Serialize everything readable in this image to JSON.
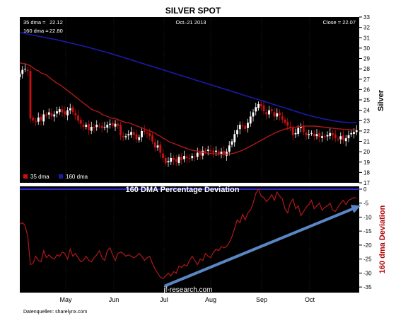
{
  "page": {
    "title": "SILVER SPOT",
    "date": "Oct–21 2013",
    "watermark": "jf-research.com",
    "source": "Datenquellen: sharelynx.com",
    "months": [
      "May",
      "Jun",
      "Jul",
      "Aug",
      "Sep",
      "Oct"
    ]
  },
  "colors": {
    "background": "#000000",
    "candle_up": "#ffffff",
    "candle_down": "#cc1010",
    "ma35": "#b01818",
    "ma160": "#1a1aa8",
    "deviation": "#b01818",
    "trend_arrow": "#5b86c4",
    "zero_line": "#2b2bd0",
    "axis_text": "#000000",
    "ylabel_upper": "#000000",
    "ylabel_lower": "#b00000"
  },
  "chart_data": [
    {
      "type": "candlestick",
      "title": "SILVER SPOT",
      "ylabel": "Silver",
      "xlim_days": [
        0,
        128
      ],
      "ylim": [
        17,
        33
      ],
      "yticks": [
        17,
        18,
        19,
        20,
        21,
        22,
        23,
        24,
        25,
        26,
        27,
        28,
        29,
        30,
        31,
        32,
        33
      ],
      "info": {
        "ma35_label": "35 dma =",
        "ma35_value": "22.12",
        "ma160_label": "160 dma =",
        "ma160_value": "22.80",
        "close_text": "Close = 22.07"
      },
      "legend": [
        {
          "name": "35 dma"
        },
        {
          "name": "160 dma"
        }
      ],
      "close": [
        27.5,
        27.9,
        28.0,
        27.8,
        23.2,
        23.0,
        22.9,
        23.3,
        23.0,
        23.6,
        23.5,
        23.8,
        23.4,
        23.6,
        23.9,
        24.1,
        23.8,
        23.6,
        24.0,
        24.2,
        23.8,
        23.5,
        23.0,
        22.7,
        22.4,
        22.6,
        22.1,
        22.4,
        22.3,
        22.6,
        22.5,
        22.3,
        22.4,
        22.6,
        22.7,
        22.5,
        22.7,
        22.5,
        21.6,
        21.4,
        21.5,
        21.7,
        21.9,
        21.6,
        21.2,
        21.4,
        22.0,
        21.9,
        21.8,
        21.5,
        21.0,
        20.4,
        20.6,
        19.9,
        19.4,
        18.9,
        19.1,
        19.4,
        19.2,
        19.0,
        19.5,
        19.2,
        19.6,
        19.4,
        19.3,
        19.6,
        19.5,
        19.9,
        19.7,
        20.1,
        20.0,
        20.2,
        20.1,
        19.9,
        20.1,
        19.8,
        20.0,
        19.7,
        20.0,
        20.6,
        21.0,
        21.7,
        22.1,
        22.6,
        22.5,
        22.2,
        22.8,
        23.4,
        23.8,
        24.3,
        24.6,
        24.4,
        23.9,
        23.6,
        24.0,
        23.9,
        23.4,
        23.7,
        23.5,
        23.1,
        22.8,
        22.5,
        22.3,
        21.6,
        21.8,
        22.3,
        22.4,
        21.9,
        21.6,
        21.7,
        21.8,
        21.5,
        21.7,
        21.4,
        21.5,
        21.4,
        21.6,
        21.8,
        21.6,
        21.3,
        21.2,
        21.5,
        21.1,
        21.3,
        21.6,
        21.8,
        21.9,
        22.07
      ],
      "ma35": [
        28.6,
        28.5,
        28.5,
        28.4,
        28.3,
        28.1,
        27.9,
        27.8,
        27.6,
        27.5,
        27.4,
        27.2,
        27.0,
        26.8,
        26.6,
        26.5,
        26.3,
        26.1,
        25.9,
        25.7,
        25.5,
        25.3,
        25.1,
        24.9,
        24.7,
        24.5,
        24.3,
        24.1,
        24.0,
        23.9,
        23.8,
        23.6,
        23.5,
        23.4,
        23.3,
        23.2,
        23.2,
        23.1,
        23.0,
        22.9,
        22.8,
        22.8,
        22.7,
        22.6,
        22.5,
        22.4,
        22.3,
        22.2,
        22.1,
        22.0,
        21.9,
        21.8,
        21.6,
        21.5,
        21.3,
        21.2,
        21.0,
        20.9,
        20.8,
        20.7,
        20.6,
        20.5,
        20.4,
        20.3,
        20.2,
        20.15,
        20.1,
        20.05,
        20.0,
        19.95,
        19.9,
        19.85,
        19.82,
        19.8,
        19.78,
        19.76,
        19.75,
        19.75,
        19.76,
        19.78,
        19.82,
        19.88,
        19.96,
        20.05,
        20.15,
        20.27,
        20.4,
        20.54,
        20.68,
        20.82,
        20.96,
        21.1,
        21.24,
        21.38,
        21.52,
        21.65,
        21.78,
        21.9,
        22.0,
        22.1,
        22.18,
        22.24,
        22.3,
        22.34,
        22.38,
        22.42,
        22.45,
        22.47,
        22.48,
        22.48,
        22.48,
        22.47,
        22.45,
        22.42,
        22.39,
        22.36,
        22.33,
        22.3,
        22.27,
        22.24,
        22.21,
        22.19,
        22.17,
        22.15,
        22.14,
        22.13,
        22.12,
        22.12
      ],
      "ma160": [
        31.5,
        31.45,
        31.4,
        31.35,
        31.3,
        31.25,
        31.2,
        31.15,
        31.1,
        31.05,
        31.0,
        30.95,
        30.9,
        30.85,
        30.8,
        30.74,
        30.68,
        30.62,
        30.56,
        30.5,
        30.44,
        30.38,
        30.32,
        30.26,
        30.2,
        30.13,
        30.06,
        29.99,
        29.92,
        29.85,
        29.78,
        29.71,
        29.64,
        29.57,
        29.5,
        29.42,
        29.34,
        29.26,
        29.18,
        29.1,
        29.02,
        28.94,
        28.86,
        28.78,
        28.7,
        28.62,
        28.54,
        28.46,
        28.38,
        28.3,
        28.22,
        28.14,
        28.06,
        27.98,
        27.9,
        27.82,
        27.74,
        27.66,
        27.58,
        27.5,
        27.42,
        27.34,
        27.26,
        27.18,
        27.1,
        27.02,
        26.94,
        26.86,
        26.78,
        26.7,
        26.62,
        26.54,
        26.46,
        26.38,
        26.3,
        26.22,
        26.14,
        26.06,
        25.98,
        25.9,
        25.82,
        25.74,
        25.66,
        25.58,
        25.5,
        25.42,
        25.34,
        25.26,
        25.18,
        25.1,
        25.02,
        24.94,
        24.86,
        24.78,
        24.7,
        24.62,
        24.54,
        24.46,
        24.38,
        24.3,
        24.22,
        24.14,
        24.06,
        23.98,
        23.9,
        23.82,
        23.74,
        23.66,
        23.58,
        23.5,
        23.44,
        23.38,
        23.32,
        23.26,
        23.2,
        23.15,
        23.1,
        23.05,
        23.0,
        22.96,
        22.92,
        22.88,
        22.86,
        22.84,
        22.82,
        22.81,
        22.8,
        22.8
      ]
    },
    {
      "type": "line",
      "title": "160 DMA Percentage Deviation",
      "ylabel": "160 dma Deviation",
      "xlim_days": [
        0,
        128
      ],
      "ylim": [
        -37,
        1
      ],
      "yticks": [
        0,
        -5,
        -10,
        -15,
        -20,
        -25,
        -30,
        -35
      ],
      "series": [
        {
          "values": [
            -12.5,
            -12.0,
            -13.0,
            -17.0,
            -27.0,
            -26.5,
            -24.0,
            -25.5,
            -26.0,
            -22.0,
            -24.5,
            -23.5,
            -24.5,
            -25.0,
            -23.5,
            -24.0,
            -22.5,
            -23.0,
            -25.0,
            -21.5,
            -24.0,
            -23.0,
            -24.5,
            -26.0,
            -25.5,
            -24.0,
            -25.5,
            -26.0,
            -24.5,
            -23.5,
            -22.0,
            -24.5,
            -25.5,
            -22.0,
            -21.0,
            -23.5,
            -25.5,
            -23.0,
            -22.5,
            -23.0,
            -24.0,
            -23.5,
            -24.0,
            -24.5,
            -24.0,
            -23.0,
            -24.0,
            -25.5,
            -24.5,
            -24.0,
            -26.5,
            -28.5,
            -30.0,
            -31.5,
            -32.0,
            -31.0,
            -30.0,
            -31.0,
            -29.5,
            -30.0,
            -27.5,
            -28.0,
            -27.0,
            -27.5,
            -25.5,
            -24.0,
            -25.5,
            -27.0,
            -25.0,
            -25.5,
            -23.0,
            -24.0,
            -24.5,
            -22.5,
            -21.5,
            -22.0,
            -20.5,
            -21.0,
            -20.5,
            -19.0,
            -17.0,
            -14.0,
            -11.0,
            -12.0,
            -9.0,
            -11.0,
            -8.5,
            -7.5,
            -5.0,
            -1.5,
            0.0,
            -2.5,
            -3.0,
            -4.5,
            -3.5,
            -2.0,
            -4.0,
            -1.0,
            -2.5,
            -3.5,
            -7.0,
            -8.5,
            -5.0,
            -3.5,
            -7.0,
            -6.0,
            -9.5,
            -8.0,
            -6.5,
            -5.5,
            -4.0,
            -7.0,
            -6.0,
            -5.0,
            -7.5,
            -6.5,
            -6.0,
            -5.0,
            -7.5,
            -8.0,
            -6.5,
            -5.0,
            -4.0,
            -5.5,
            -4.0,
            -3.5,
            -3.0,
            -3.2
          ]
        }
      ],
      "trend_arrow": {
        "from_x": 55,
        "from_y": -34.5,
        "to_x": 128,
        "to_y": -6.5
      }
    }
  ]
}
